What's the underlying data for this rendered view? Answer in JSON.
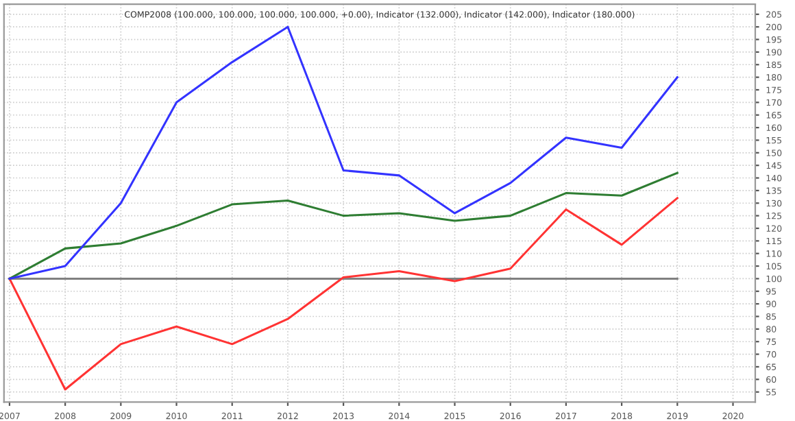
{
  "chart_data": {
    "type": "line",
    "title": "COMP2008 (100.000, 100.000, 100.000, 100.000, +0.00), Indicator (132.000), Indicator (142.000), Indicator (180.000)",
    "x": [
      2007,
      2008,
      2009,
      2010,
      2011,
      2012,
      2013,
      2014,
      2015,
      2016,
      2017,
      2018,
      2019
    ],
    "series": [
      {
        "color": "#808080",
        "values": [
          100,
          100,
          100,
          100,
          100,
          100,
          100,
          100,
          100,
          100,
          100,
          100,
          100
        ]
      },
      {
        "color": "#ff3333",
        "values": [
          100,
          56,
          74,
          81,
          74,
          84,
          100.5,
          103,
          99,
          104,
          127.5,
          113.5,
          132
        ]
      },
      {
        "color": "#2e7d32",
        "values": [
          100,
          112,
          114,
          121,
          129.5,
          131,
          125,
          126,
          123,
          125,
          134,
          133,
          142
        ]
      },
      {
        "color": "#3333ff",
        "values": [
          100,
          105,
          130,
          170,
          186,
          200,
          143,
          141,
          126,
          138,
          156,
          152,
          180
        ]
      }
    ],
    "xlim": [
      2006.9,
      2020.4
    ],
    "xticks": [
      2007,
      2008,
      2009,
      2010,
      2011,
      2012,
      2013,
      2014,
      2015,
      2016,
      2017,
      2018,
      2019,
      2020
    ],
    "ylim": [
      51,
      209
    ],
    "yticks": [
      55,
      60,
      65,
      70,
      75,
      80,
      85,
      90,
      95,
      100,
      105,
      110,
      115,
      120,
      125,
      130,
      135,
      140,
      145,
      150,
      155,
      160,
      165,
      170,
      175,
      180,
      185,
      190,
      195,
      200,
      205
    ],
    "grid": true,
    "marker": "none",
    "line_style": "solid"
  }
}
